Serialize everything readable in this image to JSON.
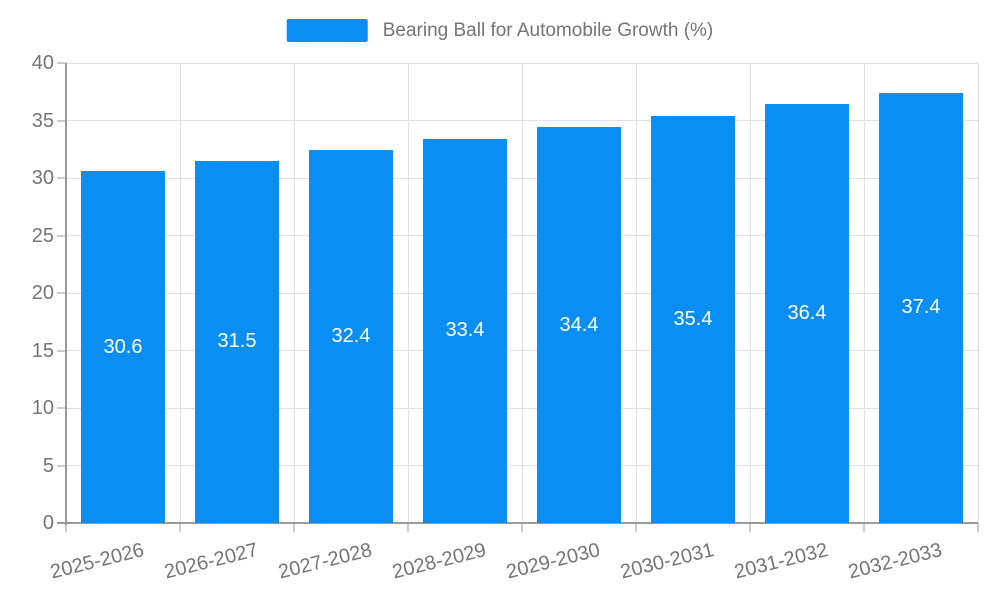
{
  "chart_data": {
    "type": "bar",
    "title": "Bearing Ball for Automobile Growth (%)",
    "categories": [
      "2025-2026",
      "2026-2027",
      "2027-2028",
      "2028-2029",
      "2029-2030",
      "2030-2031",
      "2031-2032",
      "2032-2033"
    ],
    "series": [
      {
        "name": "Bearing Ball for Automobile Growth (%)",
        "values": [
          30.6,
          31.5,
          32.4,
          33.4,
          34.4,
          35.4,
          36.4,
          37.4
        ]
      }
    ],
    "value_labels": [
      "30.6",
      "31.5",
      "32.4",
      "33.4",
      "34.4",
      "35.4",
      "36.4",
      "37.4"
    ],
    "xlabel": "",
    "ylabel": "",
    "ylim": [
      0,
      40
    ],
    "y_ticks": [
      "0",
      "5",
      "10",
      "15",
      "20",
      "25",
      "30",
      "35",
      "40"
    ],
    "grid": "on",
    "x_label_rotation_deg": -14,
    "legend": {
      "position": "top-center",
      "label": "Bearing Ball for Automobile Growth (%)"
    },
    "colors": {
      "bar": "#0a8ef4",
      "bar_label": "#ffffff",
      "axis_text": "#757575",
      "axis_line": "#999999",
      "tick_line": "#cccccc",
      "grid_line": "#e0e0e0",
      "background": "#ffffff"
    }
  }
}
